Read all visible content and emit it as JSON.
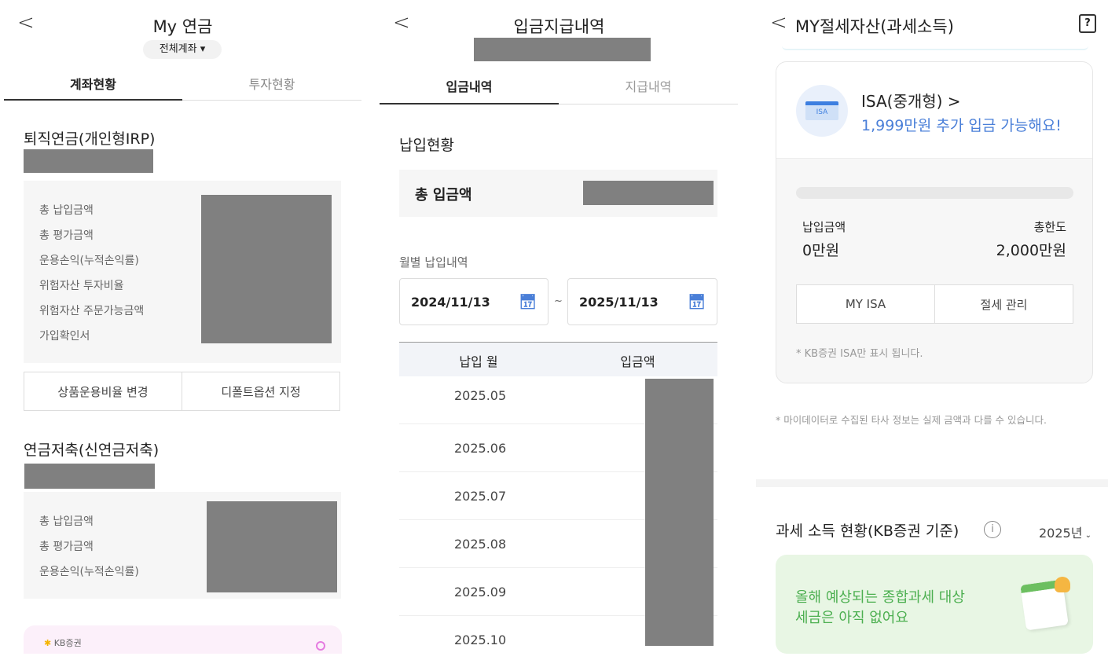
{
  "panel1": {
    "back": "<",
    "title": "My 연금",
    "account_filter": "전체계좌 ▾",
    "tabs": [
      "계좌현황",
      "투자현황"
    ],
    "irp": {
      "title": "퇴직연금(개인형IRP)",
      "labels": [
        "총 납입금액",
        "총 평가금액",
        "운용손익(누적손익률)",
        "위험자산 투자비율",
        "위험자산 주문가능금액",
        "가입확인서"
      ],
      "buttons": [
        "상품운용비율 변경",
        "디폴트옵션 지정"
      ]
    },
    "pension": {
      "title": "연금저축(신연금저축)",
      "labels": [
        "총 납입금액",
        "총 평가금액",
        "운용손익(누적손익률)"
      ]
    },
    "banner_logo": "KB증권"
  },
  "panel2": {
    "back": "<",
    "title": "입금지급내역",
    "tabs": [
      "입금내역",
      "지급내역"
    ],
    "section": "납입현황",
    "total_label": "총 입금액",
    "monthly_label": "월별 납입내역",
    "date_from": "2024/11/13",
    "date_sep": "~",
    "date_to": "2025/11/13",
    "columns": [
      "납입 월",
      "입금액"
    ],
    "months": [
      "2025.05",
      "2025.06",
      "2025.07",
      "2025.08",
      "2025.09",
      "2025.10"
    ]
  },
  "panel3": {
    "back": "<",
    "title": "MY절세자산(과세소득)",
    "isa": {
      "icon_text": "ISA",
      "name": "ISA(중개형) >",
      "promo": "1,999만원 추가 입금 가능해요!",
      "paid_label": "납입금액",
      "paid_value": "0만원",
      "limit_label": "총한도",
      "limit_value": "2,000만원",
      "progress": 0,
      "buttons": [
        "MY ISA",
        "절세 관리"
      ],
      "note": "* KB증권 ISA만 표시 됩니다."
    },
    "disclaimer": "* 마이데이터로 수집된 타사 정보는 실제 금액과 다를 수 있습니다.",
    "tax_title": "과세 소득 현황(KB증권 기준)",
    "year": "2025년",
    "tax_msg1": "올해 예상되는 종합과세 대상",
    "tax_msg2": "세금은 아직 없어요"
  },
  "colors": {
    "accent_blue": "#4a7fd8",
    "green": "#4caf50",
    "green_bg": "#e8f6e4"
  }
}
